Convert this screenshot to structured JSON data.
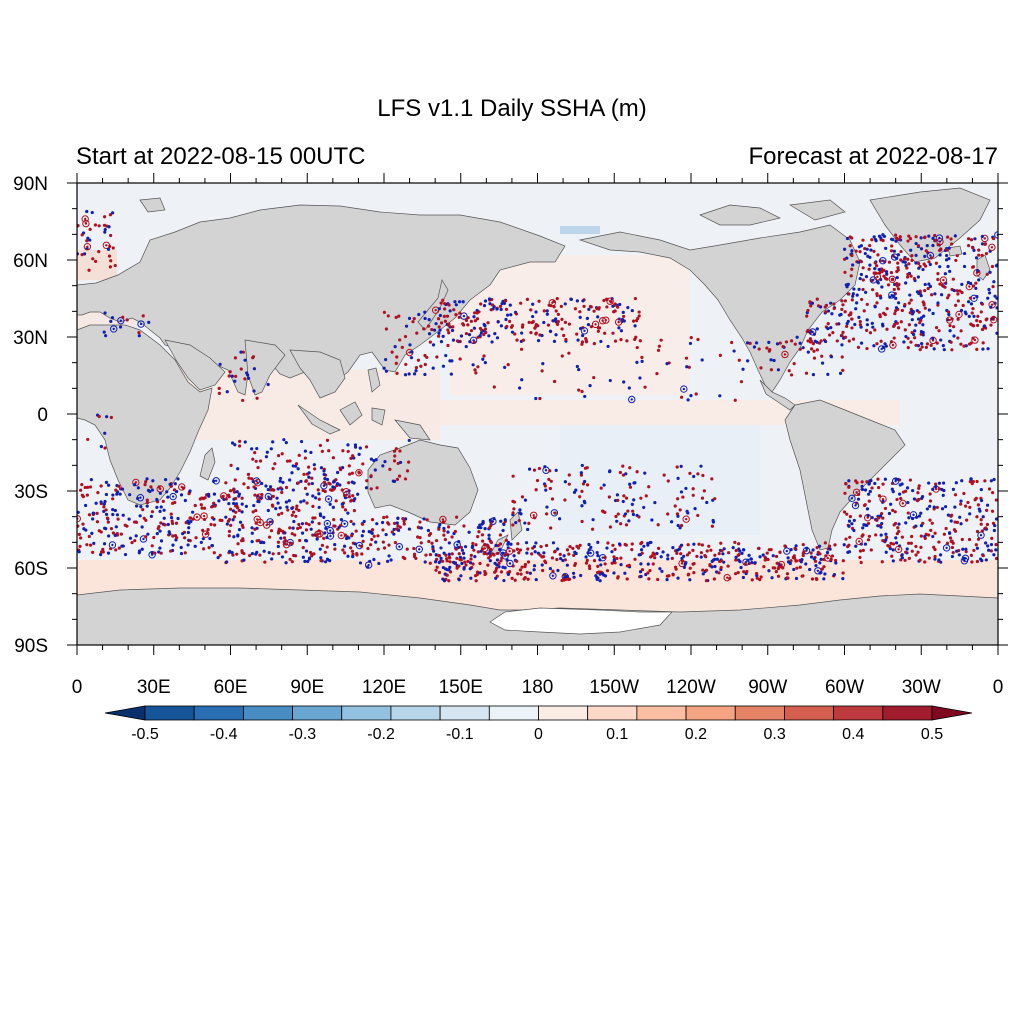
{
  "title": "LFS v1.1 Daily SSHA (m)",
  "start_label": "Start at 2022-08-15 00UTC",
  "forecast_label": "Forecast at 2022-08-17",
  "lat_ticks": [
    {
      "label": "90N",
      "lat": 90
    },
    {
      "label": "60N",
      "lat": 60
    },
    {
      "label": "30N",
      "lat": 30
    },
    {
      "label": "0",
      "lat": 0
    },
    {
      "label": "30S",
      "lat": -30
    },
    {
      "label": "60S",
      "lat": -60
    },
    {
      "label": "90S",
      "lat": -90
    }
  ],
  "lon_ticks": [
    {
      "label": "0",
      "lon": 0
    },
    {
      "label": "30E",
      "lon": 30
    },
    {
      "label": "60E",
      "lon": 60
    },
    {
      "label": "90E",
      "lon": 90
    },
    {
      "label": "120E",
      "lon": 120
    },
    {
      "label": "150E",
      "lon": 150
    },
    {
      "label": "180",
      "lon": 180
    },
    {
      "label": "150W",
      "lon": 210
    },
    {
      "label": "120W",
      "lon": 240
    },
    {
      "label": "90W",
      "lon": 270
    },
    {
      "label": "60W",
      "lon": 300
    },
    {
      "label": "30W",
      "lon": 330
    },
    {
      "label": "0",
      "lon": 360
    }
  ],
  "colorbar": {
    "labels": [
      "-0.5",
      "-0.4",
      "-0.3",
      "-0.2",
      "-0.1",
      "0",
      "0.1",
      "0.2",
      "0.3",
      "0.4",
      "0.5"
    ],
    "colors": [
      "#08306b",
      "#17559b",
      "#2a6fb3",
      "#4a8cc4",
      "#6aa6d2",
      "#93c1e0",
      "#b8d6ea",
      "#d5e6f2",
      "#ebf2f8",
      "#fbece6",
      "#fcd8c8",
      "#fbbea2",
      "#f4a383",
      "#e68367",
      "#d45f4f",
      "#bd3a3e",
      "#a11d2e",
      "#7f0a1f"
    ]
  },
  "colors": {
    "land": "#d3d3d3",
    "ocean_base": "#eef1f5",
    "positive_dot": "#b01020",
    "negative_dot": "#1020b0",
    "antarctic_ice": "#ffffff"
  }
}
